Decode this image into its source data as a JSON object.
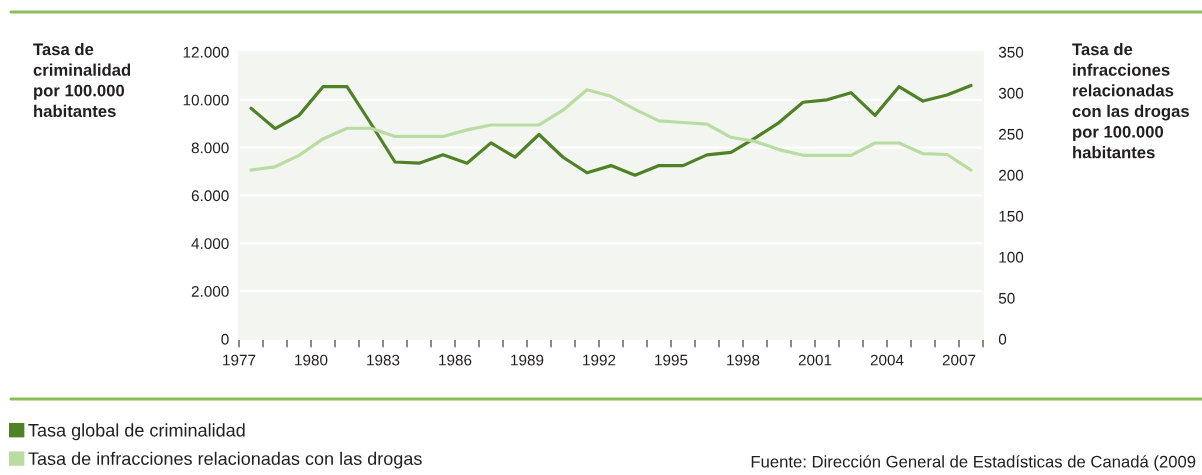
{
  "chart_data": {
    "type": "line",
    "ylabel": "Tasa de\ncriminalidad\npor 100.000\nhabitantes",
    "y2label": "Tasa de\ninfracciones\nrelacionadas\ncon las drogas\npor 100.000\nhabitantes",
    "x": [
      1977.5,
      1978.5,
      1979.5,
      1980.5,
      1981.5,
      1982.5,
      1983.5,
      1984.5,
      1985.5,
      1986.5,
      1987.5,
      1988.5,
      1989.5,
      1990.5,
      1991.5,
      1992.5,
      1993.5,
      1994.5,
      1995.5,
      1996.5,
      1997.5,
      1998.5,
      1999.5,
      2000.5,
      2001.5,
      2002.5,
      2003.5,
      2004.5,
      2005.5,
      2006.5,
      2007.5
    ],
    "series": [
      {
        "name": "Tasa global de criminalidad",
        "color": "#4f8127",
        "values": [
          9650,
          8800,
          9350,
          10550,
          10550,
          9000,
          7400,
          7350,
          7700,
          7350,
          8200,
          7600,
          8550,
          7600,
          6950,
          7250,
          6850,
          7250,
          7250,
          7700,
          7800,
          8400,
          9050,
          9900,
          10000,
          10300,
          9350,
          10550,
          9950,
          10200,
          10600
        ]
      },
      {
        "name": "Tasa de infracciones relacionadas con las drogas",
        "color": "#b9dca3",
        "axis": "y2",
        "values": [
          206,
          210,
          224,
          244,
          257,
          257,
          247,
          247,
          247,
          255,
          261,
          261,
          261,
          279,
          304,
          296,
          280,
          266,
          264,
          262,
          246,
          241,
          231,
          224,
          224,
          224,
          239,
          239,
          226,
          225,
          206
        ]
      }
    ],
    "xlim": [
      1977,
      2008
    ],
    "xticks": [
      1977,
      {
        "value": 1978,
        "label": null
      },
      {
        "value": 1979,
        "label": null
      },
      1980,
      {
        "value": 1981,
        "label": null
      },
      {
        "value": 1982,
        "label": null
      },
      1983,
      {
        "value": 1984,
        "label": null
      },
      {
        "value": 1985,
        "label": null
      },
      1986,
      {
        "value": 1987,
        "label": null
      },
      {
        "value": 1988,
        "label": null
      },
      1989,
      {
        "value": 1990,
        "label": null
      },
      {
        "value": 1991,
        "label": null
      },
      1992,
      {
        "value": 1993,
        "label": null
      },
      {
        "value": 1994,
        "label": null
      },
      1995,
      {
        "value": 1996,
        "label": null
      },
      {
        "value": 1997,
        "label": null
      },
      1998,
      {
        "value": 1999,
        "label": null
      },
      {
        "value": 2000,
        "label": null
      },
      2001,
      {
        "value": 2002,
        "label": null
      },
      {
        "value": 2003,
        "label": null
      },
      2004,
      {
        "value": 2005,
        "label": null
      },
      {
        "value": 2006,
        "label": null
      },
      2007,
      {
        "value": 2008,
        "label": null
      }
    ],
    "ylim": [
      0,
      12000
    ],
    "yticks": [
      0,
      {
        "value": 2000,
        "label": "2.000"
      },
      {
        "value": 4000,
        "label": "4.000"
      },
      {
        "value": 6000,
        "label": "6.000"
      },
      {
        "value": 8000,
        "label": "8.000"
      },
      {
        "value": 10000,
        "label": "10.000"
      },
      {
        "value": 12000,
        "label": "12.000"
      }
    ],
    "y2lim": [
      0,
      350
    ],
    "y2ticks": [
      0,
      50,
      100,
      150,
      200,
      250,
      300,
      350
    ],
    "grid": "y",
    "legend": "bottom",
    "line_style": "solid",
    "annotations": [
      "Fuente: Dirección General de Estadísticas de Canadá (2009"
    ]
  }
}
